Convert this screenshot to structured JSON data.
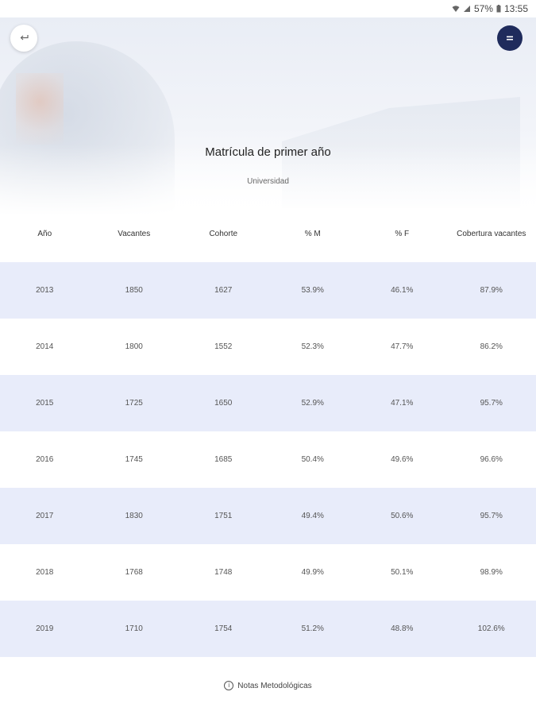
{
  "status_bar": {
    "battery": "57%",
    "time": "13:55",
    "icons": [
      "wifi-icon",
      "signal-icon",
      "battery-icon"
    ]
  },
  "header": {
    "back_icon": "back-arrow-icon",
    "menu_icon": "menu-icon",
    "title": "Matrícula de primer año",
    "subtitle": "Universidad"
  },
  "table": {
    "columns": [
      "Año",
      "Vacantes",
      "Cohorte",
      "% M",
      "% F",
      "Cobertura vacantes"
    ],
    "rows": [
      [
        "2013",
        "1850",
        "1627",
        "53.9%",
        "46.1%",
        "87.9%"
      ],
      [
        "2014",
        "1800",
        "1552",
        "52.3%",
        "47.7%",
        "86.2%"
      ],
      [
        "2015",
        "1725",
        "1650",
        "52.9%",
        "47.1%",
        "95.7%"
      ],
      [
        "2016",
        "1745",
        "1685",
        "50.4%",
        "49.6%",
        "96.6%"
      ],
      [
        "2017",
        "1830",
        "1751",
        "49.4%",
        "50.6%",
        "95.7%"
      ],
      [
        "2018",
        "1768",
        "1748",
        "49.9%",
        "50.1%",
        "98.9%"
      ],
      [
        "2019",
        "1710",
        "1754",
        "51.2%",
        "48.8%",
        "102.6%"
      ]
    ]
  },
  "footer": {
    "notes_label": "Notas Metodológicas",
    "notes_icon": "info-icon"
  },
  "colors": {
    "accent": "#1f2b5c",
    "row_shade": "#e8ecfa"
  }
}
